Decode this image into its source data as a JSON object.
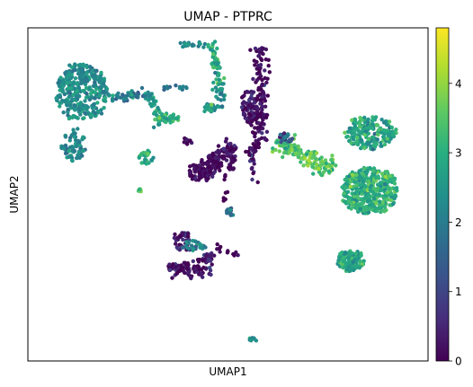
{
  "chart_data": {
    "type": "scatter",
    "title": "UMAP - PTPRC",
    "xlabel": "UMAP1",
    "ylabel": "UMAP2",
    "grid": false,
    "colormap": "viridis",
    "colorbar": {
      "range": [
        0,
        4.8
      ],
      "ticks": [
        0,
        1,
        2,
        3,
        4
      ],
      "tick_labels": [
        "0",
        "1",
        "2",
        "3",
        "4"
      ]
    },
    "xlim": [
      0,
      100
    ],
    "ylim": [
      0,
      100
    ],
    "clusters": [
      {
        "cx": 13.5,
        "cy": 80.5,
        "rx": 6.5,
        "ry": 8.5,
        "n": 340,
        "v": 2.3,
        "sd": 0.35,
        "shape": "blob"
      },
      {
        "cx": 11.5,
        "cy": 65.0,
        "rx": 2.8,
        "ry": 5.0,
        "n": 70,
        "v": 2.2,
        "sd": 0.3,
        "shape": "blob"
      },
      {
        "x1": 21,
        "y1": 79,
        "x2": 31,
        "y2": 80,
        "w": 1.4,
        "n": 55,
        "v": 2.2,
        "sd": 0.4,
        "shape": "band"
      },
      {
        "x1": 31,
        "y1": 80,
        "x2": 33,
        "y2": 70,
        "w": 1.2,
        "n": 25,
        "v": 2.6,
        "sd": 0.4,
        "shape": "band"
      },
      {
        "x1": 34,
        "y1": 82,
        "x2": 40,
        "y2": 82,
        "w": 0.8,
        "n": 12,
        "v": 2.0,
        "sd": 0.3,
        "shape": "band"
      },
      {
        "cx": 34.5,
        "cy": 73.0,
        "rx": 3.2,
        "ry": 1.4,
        "n": 40,
        "v": 3.1,
        "sd": 0.35,
        "shape": "blob"
      },
      {
        "cx": 29.5,
        "cy": 61.0,
        "rx": 1.6,
        "ry": 2.2,
        "n": 25,
        "v": 2.9,
        "sd": 0.35,
        "shape": "blob"
      },
      {
        "cx": 28.0,
        "cy": 51.5,
        "rx": 0.6,
        "ry": 0.6,
        "n": 5,
        "v": 3.3,
        "sd": 0.3,
        "shape": "blob"
      },
      {
        "x1": 38,
        "y1": 95,
        "x2": 46,
        "y2": 95,
        "w": 0.9,
        "n": 20,
        "v": 2.3,
        "sd": 0.3,
        "shape": "band"
      },
      {
        "x1": 46,
        "y1": 96,
        "x2": 48,
        "y2": 83,
        "w": 1.5,
        "n": 60,
        "v": 2.9,
        "sd": 0.45,
        "shape": "band"
      },
      {
        "x1": 47,
        "y1": 83,
        "x2": 49,
        "y2": 78,
        "w": 1.2,
        "n": 18,
        "v": 2.4,
        "sd": 0.4,
        "shape": "band"
      },
      {
        "cx": 46.0,
        "cy": 76.0,
        "rx": 2.5,
        "ry": 1.0,
        "n": 30,
        "v": 2.5,
        "sd": 0.4,
        "shape": "blob"
      },
      {
        "x1": 58,
        "y1": 95,
        "x2": 58,
        "y2": 66,
        "w": 1.8,
        "n": 130,
        "v": 0.1,
        "sd": 0.25,
        "shape": "band"
      },
      {
        "x1": 58,
        "y1": 66,
        "x2": 55,
        "y2": 62,
        "w": 1.2,
        "n": 25,
        "v": 0.15,
        "sd": 0.25,
        "shape": "band"
      },
      {
        "cx": 55.5,
        "cy": 76.5,
        "rx": 2.0,
        "ry": 6.0,
        "n": 80,
        "v": 0.3,
        "sd": 0.35,
        "shape": "blob"
      },
      {
        "x1": 52,
        "y1": 65,
        "x2": 43,
        "y2": 56,
        "w": 2.5,
        "n": 120,
        "v": 0.1,
        "sd": 0.25,
        "shape": "band"
      },
      {
        "cx": 43.5,
        "cy": 57.0,
        "rx": 3.2,
        "ry": 3.0,
        "n": 70,
        "v": 0.1,
        "sd": 0.25,
        "shape": "blob"
      },
      {
        "cx": 40.0,
        "cy": 66.0,
        "rx": 1.0,
        "ry": 0.9,
        "n": 10,
        "v": 0.0,
        "sd": 0.2,
        "shape": "blob"
      },
      {
        "x1": 48,
        "y1": 58,
        "x2": 46,
        "y2": 62,
        "w": 0.8,
        "n": 12,
        "v": 0.0,
        "sd": 0.2,
        "shape": "band"
      },
      {
        "x1": 52,
        "y1": 62,
        "x2": 49,
        "y2": 54,
        "w": 0.9,
        "n": 15,
        "v": 0.0,
        "sd": 0.2,
        "shape": "band"
      },
      {
        "x1": 56,
        "y1": 62,
        "x2": 57,
        "y2": 53,
        "w": 0.9,
        "n": 15,
        "v": 0.4,
        "sd": 0.5,
        "shape": "band"
      },
      {
        "x1": 50,
        "y1": 53,
        "x2": 49,
        "y2": 48,
        "w": 0.6,
        "n": 6,
        "v": 0.0,
        "sd": 0.2,
        "shape": "band"
      },
      {
        "cx": 50.5,
        "cy": 44.5,
        "rx": 1.0,
        "ry": 1.5,
        "n": 12,
        "v": 1.9,
        "sd": 0.4,
        "shape": "blob"
      },
      {
        "cx": 38.5,
        "cy": 36.0,
        "rx": 1.8,
        "ry": 3.2,
        "n": 40,
        "v": 0.2,
        "sd": 0.4,
        "shape": "blob"
      },
      {
        "x1": 35,
        "y1": 28,
        "x2": 46,
        "y2": 27,
        "w": 2.3,
        "n": 90,
        "v": 0.2,
        "sd": 0.35,
        "shape": "band"
      },
      {
        "cx": 41.5,
        "cy": 34.5,
        "rx": 2.5,
        "ry": 1.5,
        "n": 30,
        "v": 2.2,
        "sd": 0.5,
        "shape": "blob"
      },
      {
        "cx": 44.5,
        "cy": 31.0,
        "rx": 2.0,
        "ry": 2.0,
        "n": 25,
        "v": 0.3,
        "sd": 0.4,
        "shape": "blob"
      },
      {
        "x1": 47,
        "y1": 34,
        "x2": 53,
        "y2": 32,
        "w": 0.8,
        "n": 12,
        "v": 0.0,
        "sd": 0.2,
        "shape": "band"
      },
      {
        "cx": 56.0,
        "cy": 6.8,
        "rx": 0.8,
        "ry": 0.7,
        "n": 10,
        "v": 2.3,
        "sd": 0.3,
        "shape": "blob"
      },
      {
        "x1": 62,
        "y1": 66,
        "x2": 76,
        "y2": 57,
        "w": 2.6,
        "n": 160,
        "v": 3.6,
        "sd": 0.45,
        "shape": "band"
      },
      {
        "cx": 64.5,
        "cy": 67.0,
        "rx": 1.6,
        "ry": 1.5,
        "n": 25,
        "v": 1.5,
        "sd": 0.8,
        "shape": "blob"
      },
      {
        "cx": 85.5,
        "cy": 68.5,
        "rx": 6.5,
        "ry": 5.0,
        "n": 220,
        "v": 2.8,
        "sd": 0.45,
        "shape": "blob"
      },
      {
        "cx": 85.5,
        "cy": 51.0,
        "rx": 7.0,
        "ry": 7.0,
        "n": 420,
        "v": 3.0,
        "sd": 0.4,
        "shape": "blob"
      },
      {
        "cx": 80.5,
        "cy": 30.0,
        "rx": 3.2,
        "ry": 3.2,
        "n": 140,
        "v": 2.9,
        "sd": 0.4,
        "shape": "blob"
      }
    ]
  }
}
